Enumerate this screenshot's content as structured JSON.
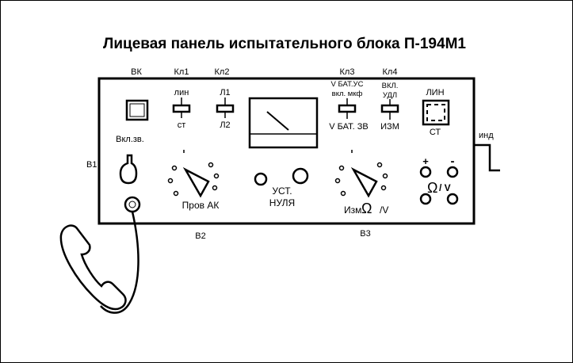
{
  "title": "Лицевая панель испытательного блока П-194М1",
  "labels": {
    "vk": "ВК",
    "kl1": "Кл1",
    "kl2": "Кл2",
    "kl3": "Кл3",
    "kl4": "Кл4",
    "kl1_top": "лин",
    "kl1_bottom": "ст",
    "kl2_top": "Л1",
    "kl2_bottom": "Л2",
    "kl3_top1": "V БАТ.УС",
    "kl3_top2": "вкл. мкф",
    "kl3_bottom": "V БАТ. ЗВ",
    "kl4_top1": "ВКЛ.",
    "kl4_top2": "УДЛ",
    "kl4_bottom": "ИЗМ",
    "ind_top": "ЛИН",
    "ind_bottom": "СТ",
    "ind": "инд",
    "b1": "В1",
    "b2": "В2",
    "b3": "В3",
    "vkl_zv": "Вкл.зв.",
    "prov_ak": "Пров АК",
    "ust": "УСТ.",
    "nulya": "НУЛЯ",
    "izm": "Изм",
    "izm_unit": "/V",
    "plus": "+",
    "minus": "-",
    "ohm_v": "/ V"
  },
  "icons": {
    "ohm": "Ω"
  }
}
